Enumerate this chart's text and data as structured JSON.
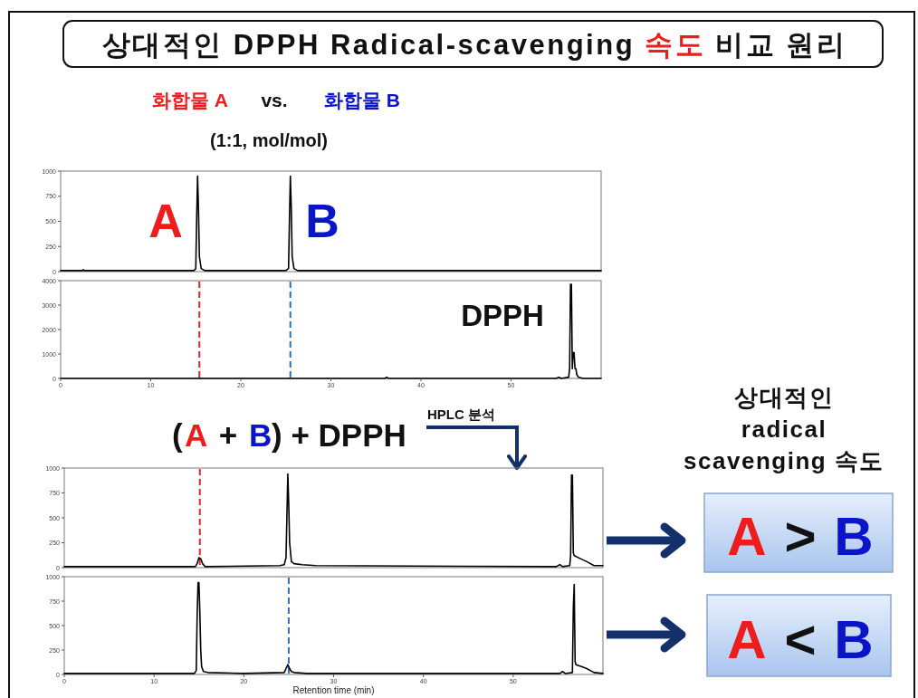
{
  "chart_data": [
    {
      "type": "line",
      "title": "상대적인 DPPH Radical-scavenging 속도 비교 원리",
      "x": [
        0,
        2.4,
        2.5,
        2.6,
        14.8,
        15.0,
        15.1,
        15.2,
        15.3,
        15.4,
        15.6,
        16.0,
        25.0,
        25.3,
        25.4,
        25.5,
        25.6,
        25.7,
        25.9,
        26.3,
        60
      ],
      "series": [
        {
          "color": "#000000",
          "values": [
            10,
            10,
            20,
            10,
            10,
            30,
            530,
            950,
            620,
            150,
            30,
            10,
            10,
            30,
            530,
            950,
            640,
            150,
            30,
            10,
            10
          ]
        }
      ],
      "xlim": [
        0,
        60
      ],
      "ylim": [
        0,
        1000
      ],
      "yticks": [
        0,
        250,
        500,
        750,
        1000
      ],
      "tick_labels": "y",
      "annotations": [
        "화합물 A",
        "vs.",
        "화합물 B",
        "(1:1, mol/mol)",
        "A",
        "B"
      ]
    },
    {
      "type": "line",
      "x": [
        0,
        36.0,
        36.2,
        36.4,
        55.0,
        55.3,
        55.6,
        56.4,
        56.5,
        56.6,
        56.7,
        56.8,
        56.9,
        57.0,
        57.1,
        57.2,
        57.3,
        57.5,
        58.0,
        60
      ],
      "series": [
        {
          "color": "#000000",
          "values": [
            0,
            0,
            50,
            0,
            0,
            50,
            0,
            50,
            400,
            3850,
            3850,
            400,
            1050,
            1050,
            400,
            400,
            150,
            50,
            0,
            0
          ]
        }
      ],
      "xlim": [
        0,
        60
      ],
      "ylim": [
        0,
        4000
      ],
      "xticks": [
        0,
        10,
        20,
        30,
        40,
        50
      ],
      "yticks": [
        0,
        1000,
        2000,
        3000,
        4000
      ],
      "ref_lines": [
        {
          "axis": "x",
          "value": 15.4,
          "color": "#e8212b",
          "line_style": "dashed"
        },
        {
          "axis": "x",
          "value": 25.5,
          "color": "#2d73b9",
          "line_style": "dashed"
        }
      ],
      "annotations": [
        "DPPH"
      ]
    },
    {
      "type": "line",
      "x": [
        0,
        14.6,
        14.8,
        15.0,
        15.2,
        15.4,
        15.7,
        24.0,
        24.5,
        24.7,
        24.8,
        24.9,
        25.0,
        25.1,
        25.3,
        25.6,
        26.5,
        28.0,
        54.8,
        55.2,
        55.5,
        56.3,
        56.4,
        56.5,
        56.6,
        56.7,
        56.8,
        57.5,
        58.2,
        59.0,
        60
      ],
      "series": [
        {
          "color": "#000000",
          "values": [
            10,
            10,
            40,
            100,
            90,
            40,
            10,
            20,
            30,
            100,
            520,
            940,
            640,
            250,
            60,
            40,
            30,
            20,
            10,
            30,
            10,
            20,
            120,
            930,
            930,
            150,
            120,
            90,
            60,
            20,
            20
          ]
        }
      ],
      "xlim": [
        0,
        60
      ],
      "ylim": [
        0,
        1000
      ],
      "yticks": [
        0,
        250,
        500,
        750,
        1000
      ],
      "tick_labels": "y",
      "ref_lines": [
        {
          "axis": "x",
          "value": 15.1,
          "color": "#e8212b",
          "line_style": "dashed"
        }
      ],
      "annotations": [
        "(",
        "A",
        "+",
        "B",
        ") + DPPH",
        "HPLC 분석",
        "상대적인\nradical\nscavenging 속도",
        "A > B"
      ]
    },
    {
      "type": "line",
      "x": [
        0,
        14.5,
        14.7,
        14.8,
        14.9,
        15.0,
        15.1,
        15.2,
        15.3,
        15.5,
        16.0,
        20.0,
        24.5,
        24.7,
        24.9,
        25.1,
        25.3,
        25.6,
        27.0,
        55.2,
        55.5,
        55.8,
        56.6,
        56.7,
        56.8,
        56.9,
        57.0,
        57.6,
        58.2,
        59.0,
        60
      ],
      "series": [
        {
          "color": "#000000",
          "values": [
            10,
            10,
            40,
            600,
            940,
            940,
            640,
            250,
            80,
            30,
            20,
            10,
            20,
            60,
            100,
            60,
            30,
            20,
            10,
            10,
            30,
            10,
            20,
            680,
            920,
            130,
            100,
            80,
            60,
            20,
            10
          ]
        }
      ],
      "xlim": [
        0,
        60
      ],
      "ylim": [
        0,
        1000
      ],
      "xticks": [
        0,
        10,
        20,
        30,
        40,
        50
      ],
      "yticks": [
        0,
        250,
        500,
        750,
        1000
      ],
      "xlabel": "Retention time (min)",
      "ref_lines": [
        {
          "axis": "x",
          "value": 25.0,
          "color": "#2d73b9",
          "line_style": "dashed"
        }
      ],
      "annotations": [
        "A < B"
      ]
    }
  ]
}
